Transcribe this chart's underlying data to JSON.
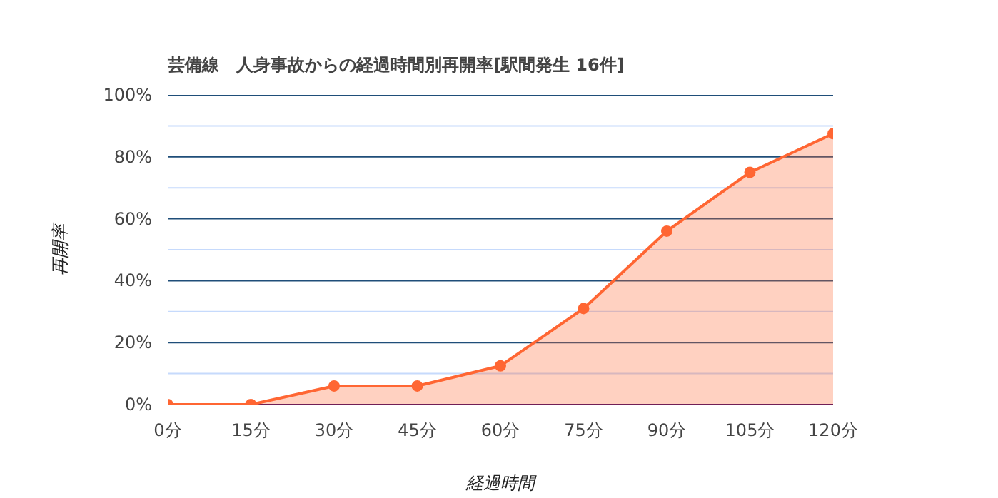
{
  "chart_data": {
    "type": "area",
    "title": "芸備線　人身事故からの経過時間別再開率[駅間発生 16件]",
    "xlabel": "経過時間",
    "ylabel": "再開率",
    "categories": [
      "0分",
      "15分",
      "30分",
      "45分",
      "60分",
      "75分",
      "90分",
      "105分",
      "120分"
    ],
    "series": [
      {
        "color": "#ff6633",
        "values": [
          0,
          0,
          6,
          6,
          12.5,
          31,
          56,
          75,
          87.5
        ]
      }
    ],
    "ylim": [
      0,
      100
    ],
    "yticks": [
      {
        "value": 0,
        "label": "0%"
      },
      {
        "value": 10,
        "label": null
      },
      {
        "value": 20,
        "label": "20%"
      },
      {
        "value": 30,
        "label": null
      },
      {
        "value": 40,
        "label": "40%"
      },
      {
        "value": 50,
        "label": null
      },
      {
        "value": 60,
        "label": "60%"
      },
      {
        "value": 70,
        "label": null
      },
      {
        "value": 80,
        "label": "80%"
      },
      {
        "value": 90,
        "label": null
      },
      {
        "value": 100,
        "label": "100%"
      }
    ],
    "grid": "y",
    "marker": "circle",
    "line_style": "solid"
  }
}
